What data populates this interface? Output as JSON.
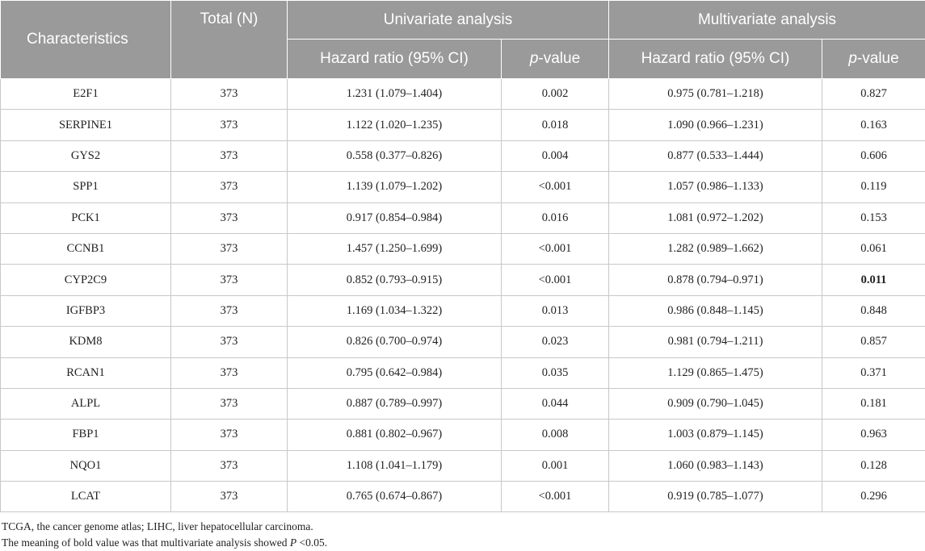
{
  "header": {
    "characteristics": "Characteristics",
    "total": "Total (N)",
    "univariate": "Univariate analysis",
    "multivariate": "Multivariate analysis",
    "hazard_ratio": "Hazard ratio (95% CI)",
    "p_prefix": "p",
    "p_suffix": "-value"
  },
  "rows": [
    {
      "name": "E2F1",
      "total": "373",
      "uni_hr": "1.231 (1.079–1.404)",
      "uni_p": "0.002",
      "multi_hr": "0.975 (0.781–1.218)",
      "multi_p": "0.827"
    },
    {
      "name": "SERPINE1",
      "total": "373",
      "uni_hr": "1.122 (1.020–1.235)",
      "uni_p": "0.018",
      "multi_hr": "1.090 (0.966–1.231)",
      "multi_p": "0.163"
    },
    {
      "name": "GYS2",
      "total": "373",
      "uni_hr": "0.558 (0.377–0.826)",
      "uni_p": "0.004",
      "multi_hr": "0.877 (0.533–1.444)",
      "multi_p": "0.606"
    },
    {
      "name": "SPP1",
      "total": "373",
      "uni_hr": "1.139 (1.079–1.202)",
      "uni_p": "<0.001",
      "multi_hr": "1.057 (0.986–1.133)",
      "multi_p": "0.119"
    },
    {
      "name": "PCK1",
      "total": "373",
      "uni_hr": "0.917 (0.854–0.984)",
      "uni_p": "0.016",
      "multi_hr": "1.081 (0.972–1.202)",
      "multi_p": "0.153"
    },
    {
      "name": "CCNB1",
      "total": "373",
      "uni_hr": "1.457 (1.250–1.699)",
      "uni_p": "<0.001",
      "multi_hr": "1.282 (0.989–1.662)",
      "multi_p": "0.061"
    },
    {
      "name": "CYP2C9",
      "total": "373",
      "uni_hr": "0.852 (0.793–0.915)",
      "uni_p": "<0.001",
      "multi_hr": "0.878 (0.794–0.971)",
      "multi_p": "0.011",
      "multi_p_bold": true
    },
    {
      "name": "IGFBP3",
      "total": "373",
      "uni_hr": "1.169 (1.034–1.322)",
      "uni_p": "0.013",
      "multi_hr": "0.986 (0.848–1.145)",
      "multi_p": "0.848"
    },
    {
      "name": "KDM8",
      "total": "373",
      "uni_hr": "0.826 (0.700–0.974)",
      "uni_p": "0.023",
      "multi_hr": "0.981 (0.794–1.211)",
      "multi_p": "0.857"
    },
    {
      "name": "RCAN1",
      "total": "373",
      "uni_hr": "0.795 (0.642–0.984)",
      "uni_p": "0.035",
      "multi_hr": "1.129 (0.865–1.475)",
      "multi_p": "0.371"
    },
    {
      "name": "ALPL",
      "total": "373",
      "uni_hr": "0.887 (0.789–0.997)",
      "uni_p": "0.044",
      "multi_hr": "0.909 (0.790–1.045)",
      "multi_p": "0.181"
    },
    {
      "name": "FBP1",
      "total": "373",
      "uni_hr": "0.881 (0.802–0.967)",
      "uni_p": "0.008",
      "multi_hr": "1.003 (0.879–1.145)",
      "multi_p": "0.963"
    },
    {
      "name": "NQO1",
      "total": "373",
      "uni_hr": "1.108 (1.041–1.179)",
      "uni_p": "0.001",
      "multi_hr": "1.060 (0.983–1.143)",
      "multi_p": "0.128"
    },
    {
      "name": "LCAT",
      "total": "373",
      "uni_hr": "0.765 (0.674–0.867)",
      "uni_p": "<0.001",
      "multi_hr": "0.919 (0.785–1.077)",
      "multi_p": "0.296"
    }
  ],
  "notes": {
    "line1": "TCGA, the cancer genome atlas; LIHC, liver hepatocellular carcinoma.",
    "line2_text": "The meaning of bold value was that multivariate analysis showed ",
    "line2_p": "P",
    "line2_end": " <0.05."
  }
}
